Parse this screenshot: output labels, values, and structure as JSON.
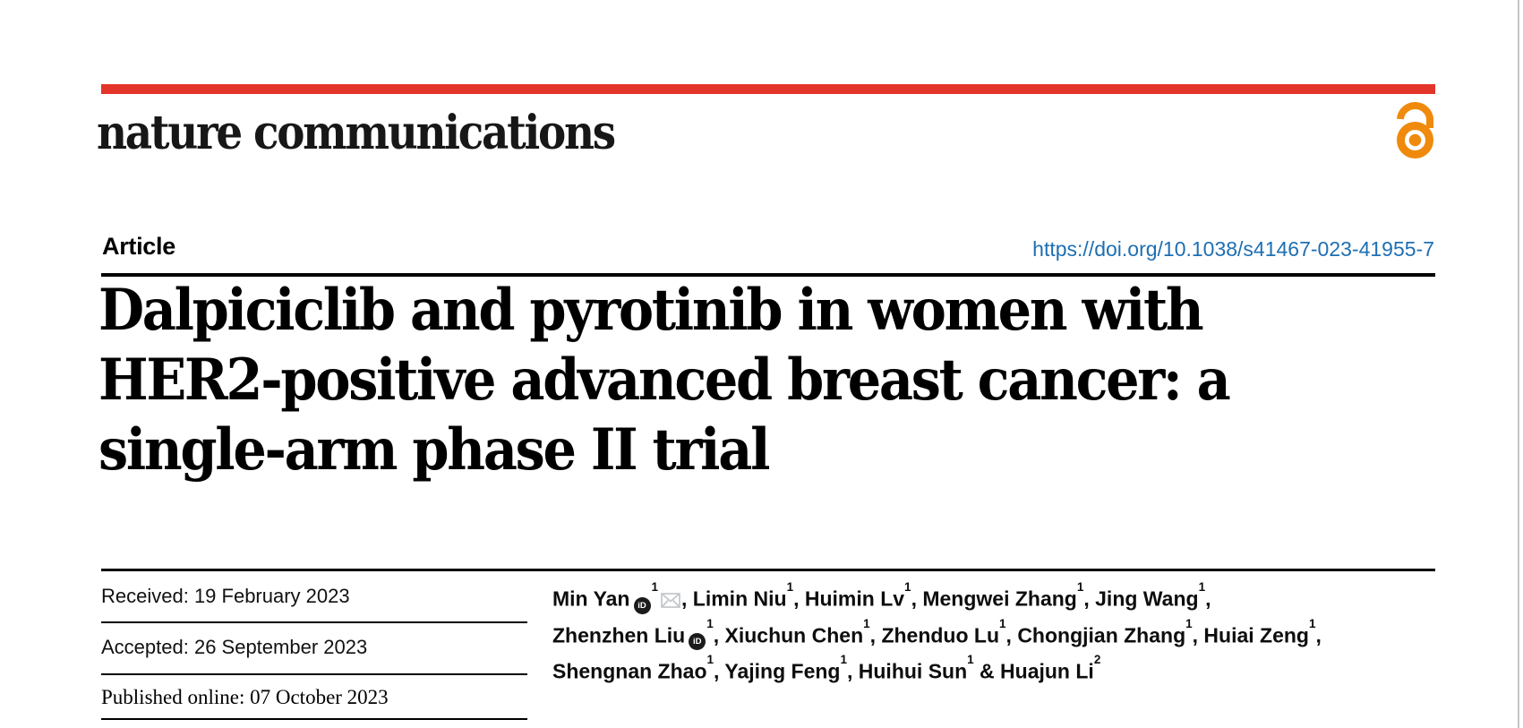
{
  "journal": {
    "name": "nature communications"
  },
  "colors": {
    "brand_red": "#e4352b",
    "link_blue": "#1e6fb2",
    "open_access_orange": "#ef8a0d",
    "envelope_gray": "#c3c7cb",
    "orcid_black": "#1b1b1b"
  },
  "header": {
    "kicker": "Article",
    "doi": "https://doi.org/10.1038/s41467-023-41955-7"
  },
  "title": {
    "lines": [
      "Dalpiciclib and pyrotinib in women with",
      "HER2-positive advanced breast cancer: a",
      "single-arm phase II trial"
    ]
  },
  "dates": [
    {
      "text": "Received: 19 February 2023"
    },
    {
      "text": "Accepted: 26 September 2023"
    },
    {
      "text": "Published online: 07 October 2023"
    }
  ],
  "authors": {
    "orcid_label": "iD",
    "lines": [
      [
        {
          "name": "Min Yan",
          "orcid": true,
          "sup": "1",
          "email": true,
          "tail": ", "
        },
        {
          "name": "Limin Niu",
          "sup": "1",
          "tail": ", "
        },
        {
          "name": "Huimin Lv",
          "sup": "1",
          "tail": ", "
        },
        {
          "name": "Mengwei Zhang",
          "sup": "1",
          "tail": ", "
        },
        {
          "name": "Jing Wang",
          "sup": "1",
          "tail": ","
        }
      ],
      [
        {
          "name": "Zhenzhen Liu",
          "orcid": true,
          "sup": "1",
          "tail": ", "
        },
        {
          "name": "Xiuchun Chen",
          "sup": "1",
          "tail": ", "
        },
        {
          "name": "Zhenduo Lu",
          "sup": "1",
          "tail": ", "
        },
        {
          "name": "Chongjian Zhang",
          "sup": "1",
          "tail": ", "
        },
        {
          "name": "Huiai Zeng",
          "sup": "1",
          "tail": ","
        }
      ],
      [
        {
          "name": "Shengnan Zhao",
          "sup": "1",
          "tail": ", "
        },
        {
          "name": "Yajing Feng",
          "sup": "1",
          "tail": ", "
        },
        {
          "name": "Huihui Sun",
          "sup": "1",
          "tail": " & "
        },
        {
          "name": "Huajun Li",
          "sup": "2",
          "tail": ""
        }
      ]
    ]
  }
}
